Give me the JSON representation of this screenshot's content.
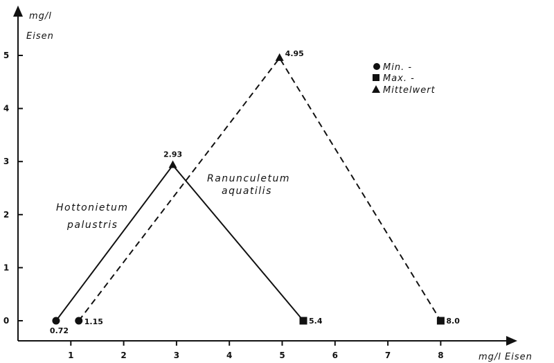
{
  "chart_data": {
    "type": "line",
    "xlabel": "mg/l Eisen",
    "ylabel_line1": "mg/l",
    "ylabel_line2": "Eisen",
    "xlim": [
      0,
      8.6
    ],
    "ylim": [
      -0.4,
      5.6
    ],
    "x_ticks": [
      1,
      2,
      3,
      4,
      5,
      6,
      7,
      8
    ],
    "y_ticks": [
      0,
      1,
      2,
      3,
      4,
      5
    ],
    "x_tick_labels": [
      "1",
      "2",
      "3",
      "4",
      "5",
      "6",
      "7",
      "8"
    ],
    "y_tick_labels": [
      "0",
      "1",
      "2",
      "3",
      "4",
      "5"
    ],
    "legend": {
      "placement": "top-right",
      "items": [
        {
          "marker": "circle",
          "label": "Min.  -"
        },
        {
          "marker": "square",
          "label": "Max.  -"
        },
        {
          "marker": "triangle",
          "label": "Mittelwert"
        }
      ]
    },
    "series": [
      {
        "name_line1": "Hottonietum",
        "name_line2": "palustris",
        "style": "solid",
        "points": [
          {
            "x": 0.72,
            "y": 0,
            "marker": "circle",
            "label": "0.72"
          },
          {
            "x": 2.93,
            "y": 2.93,
            "marker": "triangle",
            "label": "2.93"
          },
          {
            "x": 5.4,
            "y": 0,
            "marker": "square",
            "label": "5.4"
          }
        ]
      },
      {
        "name_line1": "Ranunculetum",
        "name_line2": "aquatilis",
        "style": "dashed",
        "points": [
          {
            "x": 1.15,
            "y": 0,
            "marker": "circle",
            "label": "1.15"
          },
          {
            "x": 4.95,
            "y": 4.95,
            "marker": "triangle",
            "label": "4.95"
          },
          {
            "x": 8.0,
            "y": 0,
            "marker": "square",
            "label": "8.0"
          }
        ]
      }
    ]
  }
}
